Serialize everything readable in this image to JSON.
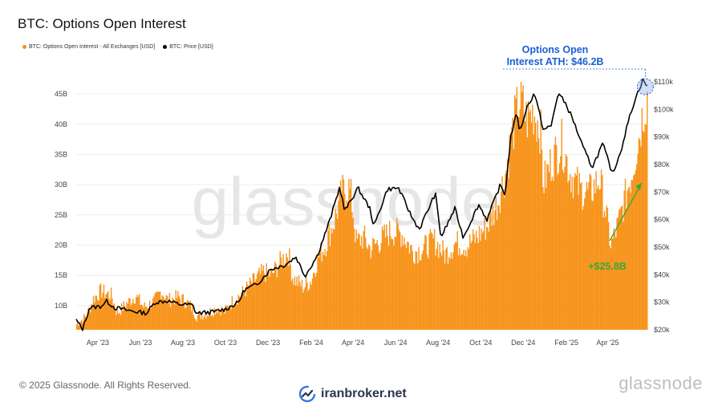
{
  "title": "BTC: Options Open Interest",
  "legend": [
    {
      "label": "BTC: Options Open Interest - All Exchanges [USD]",
      "color": "#f7931a"
    },
    {
      "label": "BTC: Price [USD]",
      "color": "#000000"
    }
  ],
  "watermark": "glassnode",
  "footer": "© 2025 Glassnode. All Rights Reserved.",
  "brand": "glassnode",
  "site_watermark": "iranbroker.net",
  "colors": {
    "oi": "#f7931a",
    "price": "#000000",
    "annotation_blue": "#1a5fd6",
    "annotation_green": "#3aa93a"
  },
  "chart_data": {
    "type": "area",
    "x_tick_labels": [
      "Apr '23",
      "Jun '23",
      "Aug '23",
      "Oct '23",
      "Dec '23",
      "Feb '24",
      "Apr '24",
      "Jun '24",
      "Aug '24",
      "Oct '24",
      "Dec '24",
      "Feb '25",
      "Apr '25"
    ],
    "x_range": [
      "2023-03-01",
      "2025-05-28"
    ],
    "y_left": {
      "ticks": [
        "10B",
        "15B",
        "20B",
        "25B",
        "30B",
        "35B",
        "40B",
        "45B"
      ],
      "values": [
        10,
        15,
        20,
        25,
        30,
        35,
        40,
        45
      ],
      "range": [
        6,
        47
      ],
      "unit": "B USD"
    },
    "y_right": {
      "ticks": [
        "$20k",
        "$30k",
        "$40k",
        "$50k",
        "$60k",
        "$70k",
        "$80k",
        "$90k",
        "$100k",
        "$110k"
      ],
      "values": [
        20,
        30,
        40,
        50,
        60,
        70,
        80,
        90,
        100,
        110
      ],
      "range": [
        20,
        110
      ],
      "unit": "k USD"
    },
    "series": [
      {
        "name": "BTC: Options Open Interest - All Exchanges [USD]",
        "axis": "left",
        "points": [
          [
            "2023-03-01",
            7.2
          ],
          [
            "2023-03-15",
            8.5
          ],
          [
            "2023-03-25",
            11.5
          ],
          [
            "2023-04-05",
            12.8
          ],
          [
            "2023-04-20",
            12.0
          ],
          [
            "2023-04-28",
            9.0
          ],
          [
            "2023-05-10",
            10.5
          ],
          [
            "2023-05-25",
            12.0
          ],
          [
            "2023-06-05",
            10.0
          ],
          [
            "2023-06-20",
            11.0
          ],
          [
            "2023-06-30",
            12.8
          ],
          [
            "2023-07-10",
            11.2
          ],
          [
            "2023-07-25",
            11.8
          ],
          [
            "2023-08-10",
            10.5
          ],
          [
            "2023-08-20",
            8.5
          ],
          [
            "2023-09-05",
            9.0
          ],
          [
            "2023-09-20",
            10.0
          ],
          [
            "2023-09-29",
            9.2
          ],
          [
            "2023-10-10",
            11.0
          ],
          [
            "2023-10-25",
            12.5
          ],
          [
            "2023-11-10",
            14.5
          ],
          [
            "2023-11-24",
            16.0
          ],
          [
            "2023-12-05",
            15.5
          ],
          [
            "2023-12-20",
            18.0
          ],
          [
            "2023-12-29",
            19.5
          ],
          [
            "2024-01-05",
            15.0
          ],
          [
            "2024-01-20",
            13.5
          ],
          [
            "2024-01-31",
            14.5
          ],
          [
            "2024-02-10",
            18.5
          ],
          [
            "2024-02-20",
            20.5
          ],
          [
            "2024-03-05",
            25.0
          ],
          [
            "2024-03-15",
            29.5
          ],
          [
            "2024-03-25",
            30.5
          ],
          [
            "2024-03-29",
            28.5
          ],
          [
            "2024-04-05",
            21.0
          ],
          [
            "2024-04-15",
            22.0
          ],
          [
            "2024-04-25",
            20.0
          ],
          [
            "2024-05-10",
            21.5
          ],
          [
            "2024-05-25",
            23.0
          ],
          [
            "2024-06-10",
            22.5
          ],
          [
            "2024-06-25",
            19.5
          ],
          [
            "2024-07-10",
            20.0
          ],
          [
            "2024-07-25",
            21.5
          ],
          [
            "2024-08-10",
            19.0
          ],
          [
            "2024-08-25",
            21.0
          ],
          [
            "2024-09-10",
            20.5
          ],
          [
            "2024-09-25",
            22.0
          ],
          [
            "2024-10-10",
            24.0
          ],
          [
            "2024-10-25",
            28.0
          ],
          [
            "2024-11-05",
            33.0
          ],
          [
            "2024-11-12",
            38.0
          ],
          [
            "2024-11-20",
            43.0
          ],
          [
            "2024-11-27",
            45.5
          ],
          [
            "2024-12-05",
            42.0
          ],
          [
            "2024-12-15",
            43.5
          ],
          [
            "2024-12-25",
            40.5
          ],
          [
            "2024-12-29",
            31.0
          ],
          [
            "2025-01-10",
            35.0
          ],
          [
            "2025-01-25",
            38.0
          ],
          [
            "2025-02-05",
            33.0
          ],
          [
            "2025-02-20",
            30.0
          ],
          [
            "2025-03-05",
            29.5
          ],
          [
            "2025-03-20",
            32.0
          ],
          [
            "2025-03-29",
            26.0
          ],
          [
            "2025-04-05",
            20.5
          ],
          [
            "2025-04-15",
            24.0
          ],
          [
            "2025-04-25",
            28.5
          ],
          [
            "2025-05-05",
            33.0
          ],
          [
            "2025-05-15",
            39.0
          ],
          [
            "2025-05-22",
            44.0
          ],
          [
            "2025-05-28",
            46.2
          ]
        ]
      },
      {
        "name": "BTC: Price [USD]",
        "axis": "right",
        "points": [
          [
            "2023-03-01",
            23.5
          ],
          [
            "2023-03-10",
            20.2
          ],
          [
            "2023-03-20",
            28.0
          ],
          [
            "2023-04-05",
            28.5
          ],
          [
            "2023-04-14",
            30.4
          ],
          [
            "2023-04-25",
            28.0
          ],
          [
            "2023-05-15",
            27.0
          ],
          [
            "2023-06-10",
            26.0
          ],
          [
            "2023-06-22",
            30.0
          ],
          [
            "2023-07-10",
            30.5
          ],
          [
            "2023-07-25",
            29.3
          ],
          [
            "2023-08-15",
            29.0
          ],
          [
            "2023-08-20",
            26.0
          ],
          [
            "2023-09-15",
            26.5
          ],
          [
            "2023-10-01",
            27.5
          ],
          [
            "2023-10-20",
            30.0
          ],
          [
            "2023-10-28",
            34.5
          ],
          [
            "2023-11-15",
            36.5
          ],
          [
            "2023-12-05",
            42.0
          ],
          [
            "2023-12-25",
            43.5
          ],
          [
            "2024-01-10",
            46.5
          ],
          [
            "2024-01-23",
            39.5
          ],
          [
            "2024-02-10",
            47.0
          ],
          [
            "2024-02-28",
            60.0
          ],
          [
            "2024-03-13",
            72.0
          ],
          [
            "2024-03-20",
            63.0
          ],
          [
            "2024-04-08",
            71.5
          ],
          [
            "2024-04-25",
            64.0
          ],
          [
            "2024-05-01",
            57.5
          ],
          [
            "2024-05-20",
            71.0
          ],
          [
            "2024-06-05",
            71.5
          ],
          [
            "2024-06-25",
            60.5
          ],
          [
            "2024-07-05",
            56.5
          ],
          [
            "2024-07-28",
            69.5
          ],
          [
            "2024-08-05",
            53.5
          ],
          [
            "2024-08-25",
            64.0
          ],
          [
            "2024-09-06",
            53.5
          ],
          [
            "2024-09-28",
            65.5
          ],
          [
            "2024-10-10",
            60.0
          ],
          [
            "2024-10-29",
            72.5
          ],
          [
            "2024-11-05",
            69.0
          ],
          [
            "2024-11-13",
            90.0
          ],
          [
            "2024-11-22",
            99.0
          ],
          [
            "2024-11-26",
            91.5
          ],
          [
            "2024-12-05",
            100.0
          ],
          [
            "2024-12-17",
            106.0
          ],
          [
            "2024-12-30",
            92.5
          ],
          [
            "2025-01-10",
            94.0
          ],
          [
            "2025-01-20",
            106.0
          ],
          [
            "2025-01-31",
            102.0
          ],
          [
            "2025-02-10",
            96.5
          ],
          [
            "2025-02-25",
            86.0
          ],
          [
            "2025-03-10",
            79.0
          ],
          [
            "2025-03-25",
            87.5
          ],
          [
            "2025-04-08",
            76.5
          ],
          [
            "2025-04-20",
            85.0
          ],
          [
            "2025-05-01",
            96.0
          ],
          [
            "2025-05-10",
            103.5
          ],
          [
            "2025-05-22",
            111.0
          ],
          [
            "2025-05-28",
            108.0
          ]
        ]
      }
    ],
    "annotations": [
      {
        "text": "Options Open Interest ATH: $46.2B",
        "lines": [
          "Options Open",
          "Interest ATH: $46.2B"
        ],
        "x": "2025-05-25",
        "y": 46.2,
        "color": "#1a5fd6"
      },
      {
        "text": "+$25.8B",
        "from": {
          "x": "2025-04-05",
          "y": 20.5
        },
        "to": {
          "x": "2025-05-20",
          "y": 40.5
        },
        "color": "#3aa93a"
      }
    ],
    "grid": "horizontal",
    "legend_position": "top-left"
  }
}
